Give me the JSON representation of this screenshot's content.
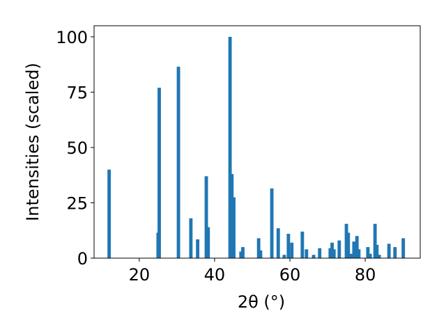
{
  "chart_data": {
    "type": "bar",
    "xlabel": "2θ (°)",
    "ylabel": "Intensities (scaled)",
    "color": "#1f77b4",
    "x": [
      12.0,
      25.0,
      25.3,
      30.4,
      33.7,
      35.5,
      37.8,
      38.3,
      44.1,
      44.6,
      45.1,
      47.0,
      47.5,
      51.7,
      52.2,
      55.2,
      56.9,
      58.5,
      59.6,
      60.5,
      63.3,
      64.4,
      66.3,
      67.9,
      70.7,
      71.2,
      71.7,
      73.1,
      75.0,
      75.5,
      76.1,
      77.0,
      77.8,
      78.3,
      80.7,
      81.3,
      82.6,
      83.1,
      83.7,
      86.3,
      87.9,
      90.1
    ],
    "values": [
      40,
      11.5,
      77,
      86.5,
      18,
      8.5,
      37,
      14,
      100,
      38,
      27.5,
      3,
      5,
      9,
      3.5,
      31.5,
      13.5,
      1.5,
      11,
      7,
      12,
      4,
      1.5,
      4.5,
      4.5,
      7,
      4,
      8,
      15.5,
      11.5,
      2,
      7.5,
      10,
      4,
      5,
      2,
      15.5,
      6,
      1.5,
      6.5,
      5,
      9
    ],
    "xlim": [
      8,
      94.6
    ],
    "ylim": [
      0,
      105
    ],
    "xticks": [
      20,
      40,
      60,
      80
    ],
    "yticks": [
      0,
      25,
      50,
      75,
      100
    ]
  }
}
